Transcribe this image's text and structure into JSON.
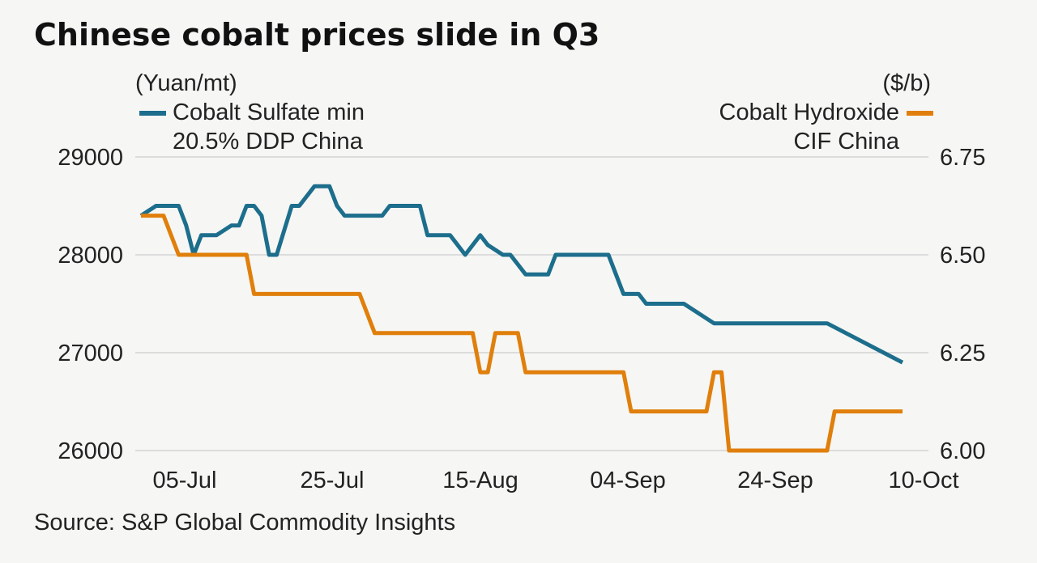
{
  "title": "Chinese cobalt prices slide in Q3",
  "left_unit": "(Yuan/mt)",
  "right_unit": "($/b)",
  "legend": {
    "sulfate_line1": "Cobalt Sulfate min",
    "sulfate_line2": "20.5% DDP China",
    "hydroxide_line1": "Cobalt Hydroxide",
    "hydroxide_line2": "CIF China"
  },
  "source": "Source: S&P Global Commodity Insights",
  "chart_data": {
    "type": "line",
    "title": "Chinese cobalt prices slide in Q3",
    "x_tick_labels": [
      "05-Jul",
      "25-Jul",
      "15-Aug",
      "04-Sep",
      "24-Sep",
      "10-Oct"
    ],
    "y_left": {
      "label": "(Yuan/mt)",
      "range": [
        26000,
        29000
      ],
      "ticks": [
        "29000",
        "28000",
        "27000",
        "26000"
      ]
    },
    "y_right": {
      "label": "($/b)",
      "range": [
        6.0,
        6.75
      ],
      "ticks": [
        "6.75",
        "6.50",
        "6.25",
        "6.00"
      ]
    },
    "grid": true,
    "legend_placement": "top",
    "colors": {
      "sulfate": "#1c6e8c",
      "hydroxide": "#e07f0b"
    },
    "series": [
      {
        "name": "Cobalt Sulfate min 20.5% DDP China",
        "axis": "left",
        "color": "#1c6e8c",
        "x": [
          "2022-07-01",
          "2022-07-03",
          "2022-07-04",
          "2022-07-06",
          "2022-07-07",
          "2022-07-08",
          "2022-07-09",
          "2022-07-10",
          "2022-07-11",
          "2022-07-13",
          "2022-07-14",
          "2022-07-15",
          "2022-07-16",
          "2022-07-17",
          "2022-07-18",
          "2022-07-19",
          "2022-07-21",
          "2022-07-22",
          "2022-07-24",
          "2022-07-25",
          "2022-07-26",
          "2022-07-27",
          "2022-07-28",
          "2022-07-31",
          "2022-08-02",
          "2022-08-03",
          "2022-08-07",
          "2022-08-08",
          "2022-08-10",
          "2022-08-11",
          "2022-08-13",
          "2022-08-15",
          "2022-08-16",
          "2022-08-18",
          "2022-08-19",
          "2022-08-21",
          "2022-08-22",
          "2022-08-24",
          "2022-08-25",
          "2022-09-01",
          "2022-09-02",
          "2022-09-03",
          "2022-09-05",
          "2022-09-06",
          "2022-09-08",
          "2022-09-09",
          "2022-09-11",
          "2022-09-15",
          "2022-09-16",
          "2022-09-29",
          "2022-09-30",
          "2022-10-10"
        ],
        "values": [
          28400,
          28500,
          28500,
          28500,
          28300,
          28000,
          28200,
          28200,
          28200,
          28300,
          28300,
          28500,
          28500,
          28400,
          28000,
          28000,
          28500,
          28500,
          28700,
          28700,
          28700,
          28500,
          28400,
          28400,
          28400,
          28500,
          28500,
          28200,
          28200,
          28200,
          28000,
          28200,
          28100,
          28000,
          28000,
          27800,
          27800,
          27800,
          28000,
          28000,
          27800,
          27600,
          27600,
          27500,
          27500,
          27500,
          27500,
          27300,
          27300,
          27300,
          27300,
          26900
        ]
      },
      {
        "name": "Cobalt Hydroxide CIF China",
        "axis": "right",
        "color": "#e07f0b",
        "x": [
          "2022-07-01",
          "2022-07-03",
          "2022-07-04",
          "2022-07-06",
          "2022-07-15",
          "2022-07-16",
          "2022-07-29",
          "2022-07-30",
          "2022-08-01",
          "2022-08-14",
          "2022-08-15",
          "2022-08-16",
          "2022-08-17",
          "2022-08-18",
          "2022-08-20",
          "2022-08-21",
          "2022-08-22",
          "2022-08-24",
          "2022-08-25",
          "2022-09-03",
          "2022-09-04",
          "2022-09-05",
          "2022-09-14",
          "2022-09-15",
          "2022-09-16",
          "2022-09-17",
          "2022-09-18",
          "2022-09-20",
          "2022-09-21",
          "2022-09-28",
          "2022-09-29",
          "2022-09-30",
          "2022-10-01",
          "2022-10-10"
        ],
        "values": [
          6.6,
          6.6,
          6.6,
          6.5,
          6.5,
          6.4,
          6.4,
          6.4,
          6.3,
          6.3,
          6.2,
          6.2,
          6.3,
          6.3,
          6.3,
          6.2,
          6.2,
          6.2,
          6.2,
          6.2,
          6.1,
          6.1,
          6.1,
          6.2,
          6.2,
          6.0,
          6.0,
          6.0,
          6.0,
          6.0,
          6.0,
          6.0,
          6.1,
          6.1
        ]
      }
    ]
  }
}
